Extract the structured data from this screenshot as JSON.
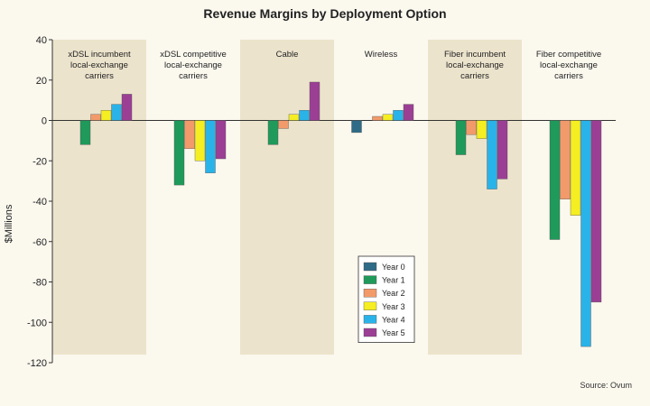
{
  "chart_data": {
    "type": "bar",
    "title": "Revenue Margins by Deployment Option",
    "ylabel": "$Millions",
    "xlabel": "",
    "source": "Source: Ovum",
    "ylim": [
      -120,
      40
    ],
    "yticks": [
      40,
      20,
      0,
      -20,
      -40,
      -60,
      -80,
      -100,
      -120
    ],
    "grid": false,
    "legend_position": "bottom-center",
    "categories": [
      "xDSL incumbent local-exchange carriers",
      "xDSL competitive local-exchange carriers",
      "Cable",
      "Wireless",
      "Fiber incumbent local-exchange carriers",
      "Fiber competitive local-exchange carriers"
    ],
    "category_lines": [
      [
        "xDSL incumbent",
        "local-exchange",
        "carriers"
      ],
      [
        "xDSL competitive",
        "local-exchange",
        "carriers"
      ],
      [
        "Cable"
      ],
      [
        "Wireless"
      ],
      [
        "Fiber incumbent",
        "local-exchange",
        "carriers"
      ],
      [
        "Fiber competitive",
        "local-exchange",
        "carriers"
      ]
    ],
    "series": [
      {
        "name": "Year 0",
        "color": "#2e6b86",
        "values": [
          0,
          0,
          0,
          -6,
          0,
          0
        ]
      },
      {
        "name": "Year 1",
        "color": "#1f9a5a",
        "values": [
          -12,
          -32,
          -12,
          0,
          -17,
          -59
        ]
      },
      {
        "name": "Year 2",
        "color": "#f29a6a",
        "values": [
          3,
          -14,
          -4,
          2,
          -7,
          -39
        ]
      },
      {
        "name": "Year 3",
        "color": "#f5ee22",
        "values": [
          5,
          -20,
          3,
          3,
          -9,
          -47
        ]
      },
      {
        "name": "Year 4",
        "color": "#2ab3e8",
        "values": [
          8,
          -26,
          5,
          5,
          -34,
          -112
        ]
      },
      {
        "name": "Year 5",
        "color": "#9b3f94",
        "values": [
          13,
          -19,
          19,
          8,
          -29,
          -90
        ]
      }
    ]
  },
  "colors": {
    "page_background": "#fbf8ee",
    "shaded_band": "#ece3cc",
    "axis": "#333333",
    "bar_outline": "#555555"
  }
}
